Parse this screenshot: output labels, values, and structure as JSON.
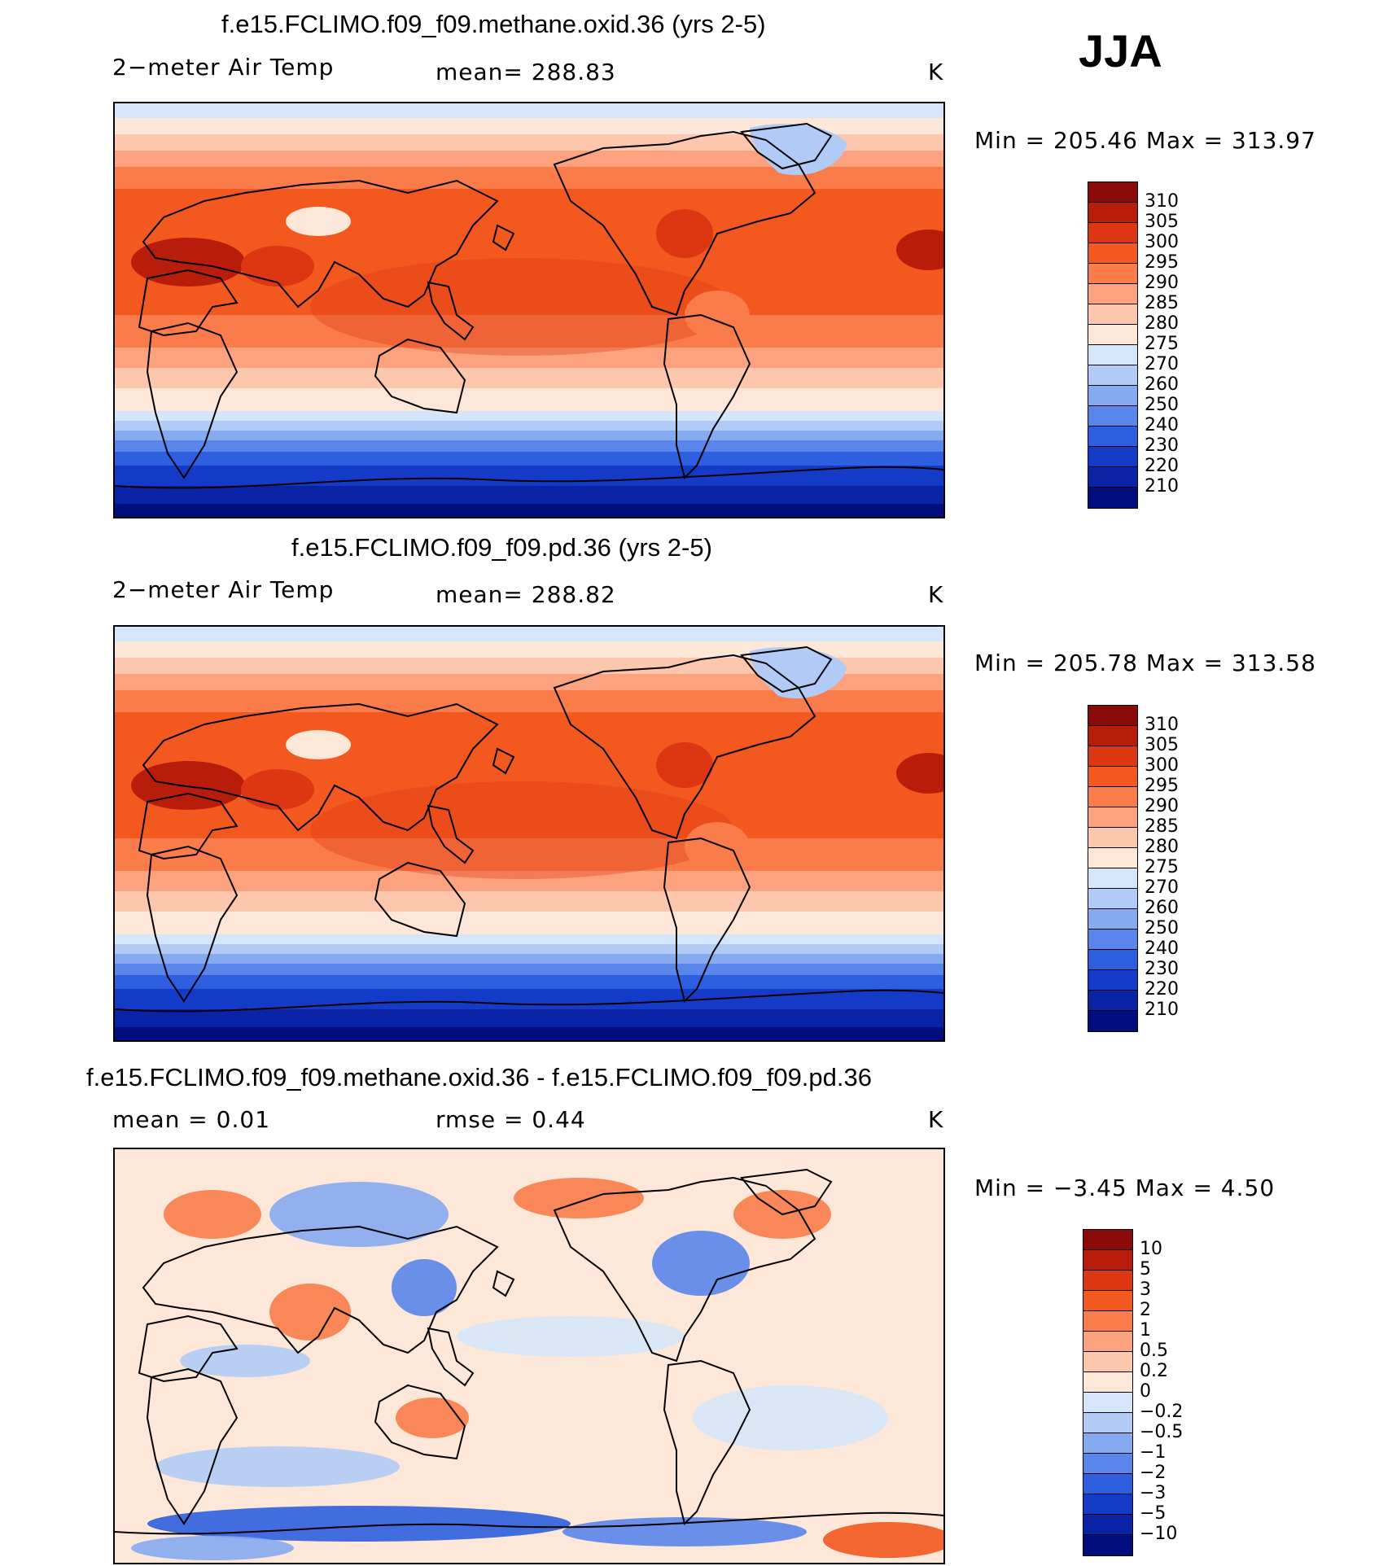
{
  "season": "JJA",
  "chart_data": [
    {
      "type": "heatmap",
      "title": "f.e15.FCLIMO.f09_f09.methane.oxid.36 (yrs 2-5)",
      "variable": "2−meter Air Temp",
      "stat_label": "mean= 288.83",
      "unit": "K",
      "range_text": "Min  =  205.46  Max  =  313.97",
      "min": 205.46,
      "max": 313.97,
      "mean": 288.83,
      "colorbar": {
        "labels": [
          "310",
          "305",
          "300",
          "295",
          "290",
          "285",
          "280",
          "275",
          "270",
          "260",
          "250",
          "240",
          "230",
          "220",
          "210"
        ],
        "colors": [
          "#8a0a0a",
          "#b81d0b",
          "#dd3612",
          "#f3581f",
          "#f97c4a",
          "#fca27f",
          "#fdc7ad",
          "#fde7d8",
          "#d5e5fa",
          "#b1cbf6",
          "#86aaf0",
          "#5a85ea",
          "#2e5fe0",
          "#143bc8",
          "#0a23a6",
          "#030e7e"
        ]
      }
    },
    {
      "type": "heatmap",
      "title": "f.e15.FCLIMO.f09_f09.pd.36 (yrs 2-5)",
      "variable": "2−meter Air Temp",
      "stat_label": "mean= 288.82",
      "unit": "K",
      "range_text": "Min  =  205.78  Max  =  313.58",
      "min": 205.78,
      "max": 313.58,
      "mean": 288.82,
      "colorbar": {
        "labels": [
          "310",
          "305",
          "300",
          "295",
          "290",
          "285",
          "280",
          "275",
          "270",
          "260",
          "250",
          "240",
          "230",
          "220",
          "210"
        ],
        "colors": [
          "#8a0a0a",
          "#b81d0b",
          "#dd3612",
          "#f3581f",
          "#f97c4a",
          "#fca27f",
          "#fdc7ad",
          "#fde7d8",
          "#d5e5fa",
          "#b1cbf6",
          "#86aaf0",
          "#5a85ea",
          "#2e5fe0",
          "#143bc8",
          "#0a23a6",
          "#030e7e"
        ]
      }
    },
    {
      "type": "heatmap",
      "title": "f.e15.FCLIMO.f09_f09.methane.oxid.36 - f.e15.FCLIMO.f09_f09.pd.36",
      "mean_label": "mean  =      0.01",
      "rmse_label": "rmse  =      0.44",
      "unit": "K",
      "range_text": "Min  =     −3.45  Max  =       4.50",
      "min": -3.45,
      "max": 4.5,
      "mean": 0.01,
      "rmse": 0.44,
      "colorbar": {
        "labels": [
          "10",
          "5",
          "3",
          "2",
          "1",
          "0.5",
          "0.2",
          "0",
          "−0.2",
          "−0.5",
          "−1",
          "−2",
          "−3",
          "−5",
          "−10"
        ],
        "colors": [
          "#8a0a0a",
          "#b81d0b",
          "#dd3612",
          "#f3581f",
          "#f97c4a",
          "#fca27f",
          "#fdc7ad",
          "#fde7d8",
          "#d5e5fa",
          "#b1cbf6",
          "#86aaf0",
          "#5a85ea",
          "#2e5fe0",
          "#143bc8",
          "#0a23a6",
          "#030e7e"
        ]
      }
    }
  ]
}
